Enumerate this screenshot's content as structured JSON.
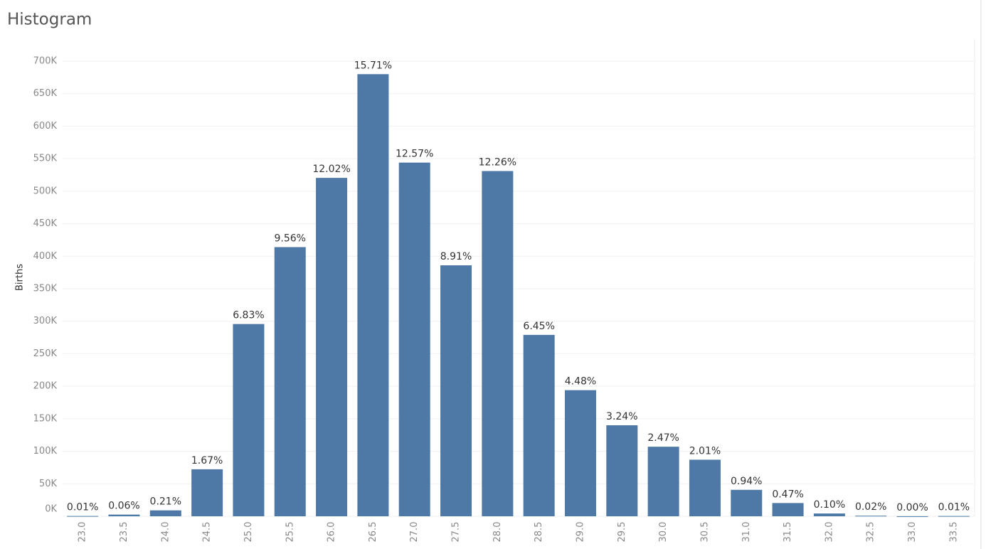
{
  "chart_data": {
    "type": "bar",
    "title": "Histogram",
    "y_label": "Births",
    "categories": [
      "23.0",
      "23.5",
      "24.0",
      "24.5",
      "25.0",
      "25.5",
      "26.0",
      "26.5",
      "27.0",
      "27.5",
      "28.0",
      "28.5",
      "29.0",
      "29.5",
      "30.0",
      "30.5",
      "31.0",
      "31.5",
      "32.0",
      "32.5",
      "33.0",
      "33.5"
    ],
    "values": [
      433,
      2600,
      9100,
      72300,
      295700,
      414000,
      520500,
      680000,
      544000,
      386000,
      531000,
      279000,
      194000,
      140000,
      107000,
      87000,
      40700,
      20400,
      4300,
      870,
      100,
      433
    ],
    "percent_labels": [
      "0.01%",
      "0.06%",
      "0.21%",
      "1.67%",
      "6.83%",
      "9.56%",
      "12.02%",
      "15.71%",
      "12.57%",
      "8.91%",
      "12.26%",
      "6.45%",
      "4.48%",
      "3.24%",
      "2.47%",
      "2.01%",
      "0.94%",
      "0.47%",
      "0.10%",
      "0.02%",
      "0.00%",
      "0.01%"
    ],
    "color": "#4e79a7",
    "ylim": [
      0,
      700000
    ],
    "yticks": [
      {
        "value": 0,
        "label": "0K"
      },
      {
        "value": 50000,
        "label": "50K"
      },
      {
        "value": 100000,
        "label": "100K"
      },
      {
        "value": 150000,
        "label": "150K"
      },
      {
        "value": 200000,
        "label": "200K"
      },
      {
        "value": 250000,
        "label": "250K"
      },
      {
        "value": 300000,
        "label": "300K"
      },
      {
        "value": 350000,
        "label": "350K"
      },
      {
        "value": 400000,
        "label": "400K"
      },
      {
        "value": 450000,
        "label": "450K"
      },
      {
        "value": 500000,
        "label": "500K"
      },
      {
        "value": 550000,
        "label": "550K"
      },
      {
        "value": 600000,
        "label": "600K"
      },
      {
        "value": 650000,
        "label": "650K"
      },
      {
        "value": 700000,
        "label": "700K"
      }
    ],
    "grid": true
  }
}
